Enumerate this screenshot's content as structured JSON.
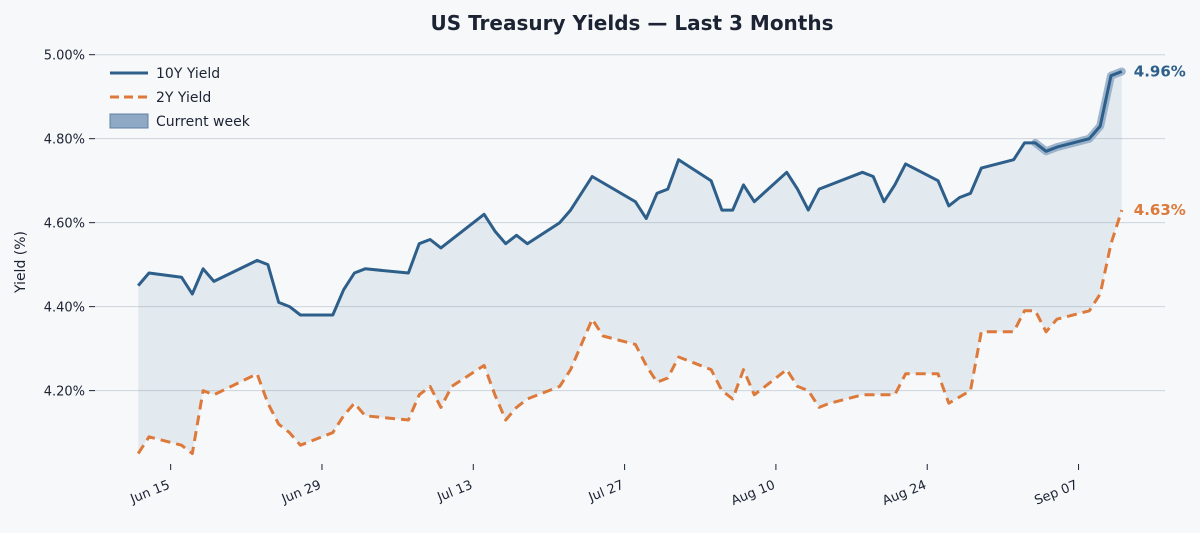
{
  "chart_data": {
    "type": "line",
    "title": "US Treasury Yields — Last 3 Months",
    "xlabel": "",
    "ylabel": "Yield (%)",
    "ylim": [
      4.03,
      5.035
    ],
    "xlim": [
      "2024-06-08",
      "2024-09-15"
    ],
    "y_ticks": [
      4.2,
      4.4,
      4.6,
      4.8,
      5.0
    ],
    "y_tick_labels": [
      "4.20%",
      "4.40%",
      "4.60%",
      "4.80%",
      "5.00%"
    ],
    "x_ticks": [
      "2024-06-15",
      "2024-06-29",
      "2024-07-13",
      "2024-07-27",
      "2024-08-10",
      "2024-08-24",
      "2024-09-07"
    ],
    "x_tick_labels": [
      "Jun 15",
      "Jun 29",
      "Jul 13",
      "Jul 27",
      "Aug 10",
      "Aug 24",
      "Sep 07"
    ],
    "grid": "horizontal",
    "legend": "top-left",
    "fill_between_series": true,
    "highlight": {
      "label": "Current week",
      "x_range": [
        "2024-09-03",
        "2024-09-12"
      ],
      "color": "#8fa9c4"
    },
    "series": [
      {
        "name": "10Y Yield",
        "color": "#2d5f8a",
        "style": "solid",
        "end_label": "4.96%",
        "points": [
          [
            "2024-06-12",
            4.45
          ],
          [
            "2024-06-13",
            4.48
          ],
          [
            "2024-06-16",
            4.47
          ],
          [
            "2024-06-17",
            4.43
          ],
          [
            "2024-06-18",
            4.49
          ],
          [
            "2024-06-19",
            4.46
          ],
          [
            "2024-06-23",
            4.51
          ],
          [
            "2024-06-24",
            4.5
          ],
          [
            "2024-06-25",
            4.41
          ],
          [
            "2024-06-26",
            4.4
          ],
          [
            "2024-06-27",
            4.38
          ],
          [
            "2024-06-30",
            4.38
          ],
          [
            "2024-07-01",
            4.44
          ],
          [
            "2024-07-02",
            4.48
          ],
          [
            "2024-07-03",
            4.49
          ],
          [
            "2024-07-07",
            4.48
          ],
          [
            "2024-07-08",
            4.55
          ],
          [
            "2024-07-09",
            4.56
          ],
          [
            "2024-07-10",
            4.54
          ],
          [
            "2024-07-14",
            4.62
          ],
          [
            "2024-07-15",
            4.58
          ],
          [
            "2024-07-16",
            4.55
          ],
          [
            "2024-07-17",
            4.57
          ],
          [
            "2024-07-18",
            4.55
          ],
          [
            "2024-07-21",
            4.6
          ],
          [
            "2024-07-22",
            4.63
          ],
          [
            "2024-07-24",
            4.71
          ],
          [
            "2024-07-28",
            4.65
          ],
          [
            "2024-07-29",
            4.61
          ],
          [
            "2024-07-30",
            4.67
          ],
          [
            "2024-07-31",
            4.68
          ],
          [
            "2024-08-01",
            4.75
          ],
          [
            "2024-08-04",
            4.7
          ],
          [
            "2024-08-05",
            4.63
          ],
          [
            "2024-08-06",
            4.63
          ],
          [
            "2024-08-07",
            4.69
          ],
          [
            "2024-08-08",
            4.65
          ],
          [
            "2024-08-11",
            4.72
          ],
          [
            "2024-08-12",
            4.68
          ],
          [
            "2024-08-13",
            4.63
          ],
          [
            "2024-08-14",
            4.68
          ],
          [
            "2024-08-18",
            4.72
          ],
          [
            "2024-08-19",
            4.71
          ],
          [
            "2024-08-20",
            4.65
          ],
          [
            "2024-08-21",
            4.69
          ],
          [
            "2024-08-22",
            4.74
          ],
          [
            "2024-08-25",
            4.7
          ],
          [
            "2024-08-26",
            4.64
          ],
          [
            "2024-08-27",
            4.66
          ],
          [
            "2024-08-28",
            4.67
          ],
          [
            "2024-08-29",
            4.73
          ],
          [
            "2024-09-01",
            4.75
          ],
          [
            "2024-09-02",
            4.79
          ],
          [
            "2024-09-03",
            4.79
          ],
          [
            "2024-09-04",
            4.77
          ],
          [
            "2024-09-05",
            4.78
          ],
          [
            "2024-09-08",
            4.8
          ],
          [
            "2024-09-09",
            4.83
          ],
          [
            "2024-09-10",
            4.95
          ],
          [
            "2024-09-11",
            4.96
          ]
        ]
      },
      {
        "name": "2Y Yield",
        "color": "#dd7a3b",
        "style": "dashed",
        "end_label": "4.63%",
        "points": [
          [
            "2024-06-12",
            4.05
          ],
          [
            "2024-06-13",
            4.09
          ],
          [
            "2024-06-16",
            4.07
          ],
          [
            "2024-06-17",
            4.05
          ],
          [
            "2024-06-18",
            4.2
          ],
          [
            "2024-06-19",
            4.19
          ],
          [
            "2024-06-23",
            4.24
          ],
          [
            "2024-06-24",
            4.17
          ],
          [
            "2024-06-25",
            4.12
          ],
          [
            "2024-06-26",
            4.1
          ],
          [
            "2024-06-27",
            4.07
          ],
          [
            "2024-06-30",
            4.1
          ],
          [
            "2024-07-01",
            4.14
          ],
          [
            "2024-07-02",
            4.17
          ],
          [
            "2024-07-03",
            4.14
          ],
          [
            "2024-07-07",
            4.13
          ],
          [
            "2024-07-08",
            4.19
          ],
          [
            "2024-07-09",
            4.21
          ],
          [
            "2024-07-10",
            4.16
          ],
          [
            "2024-07-11",
            4.21
          ],
          [
            "2024-07-14",
            4.26
          ],
          [
            "2024-07-15",
            4.19
          ],
          [
            "2024-07-16",
            4.13
          ],
          [
            "2024-07-17",
            4.16
          ],
          [
            "2024-07-18",
            4.18
          ],
          [
            "2024-07-21",
            4.21
          ],
          [
            "2024-07-22",
            4.25
          ],
          [
            "2024-07-24",
            4.37
          ],
          [
            "2024-07-25",
            4.33
          ],
          [
            "2024-07-28",
            4.31
          ],
          [
            "2024-07-29",
            4.26
          ],
          [
            "2024-07-30",
            4.22
          ],
          [
            "2024-07-31",
            4.23
          ],
          [
            "2024-08-01",
            4.28
          ],
          [
            "2024-08-04",
            4.25
          ],
          [
            "2024-08-05",
            4.2
          ],
          [
            "2024-08-06",
            4.18
          ],
          [
            "2024-08-07",
            4.25
          ],
          [
            "2024-08-08",
            4.19
          ],
          [
            "2024-08-11",
            4.25
          ],
          [
            "2024-08-12",
            4.21
          ],
          [
            "2024-08-13",
            4.2
          ],
          [
            "2024-08-14",
            4.16
          ],
          [
            "2024-08-15",
            4.17
          ],
          [
            "2024-08-18",
            4.19
          ],
          [
            "2024-08-21",
            4.19
          ],
          [
            "2024-08-22",
            4.24
          ],
          [
            "2024-08-25",
            4.24
          ],
          [
            "2024-08-26",
            4.17
          ],
          [
            "2024-08-28",
            4.2
          ],
          [
            "2024-08-29",
            4.34
          ],
          [
            "2024-09-01",
            4.34
          ],
          [
            "2024-09-02",
            4.39
          ],
          [
            "2024-09-03",
            4.39
          ],
          [
            "2024-09-04",
            4.34
          ],
          [
            "2024-09-05",
            4.37
          ],
          [
            "2024-09-08",
            4.39
          ],
          [
            "2024-09-09",
            4.43
          ],
          [
            "2024-09-10",
            4.55
          ],
          [
            "2024-09-11",
            4.63
          ]
        ]
      }
    ]
  }
}
